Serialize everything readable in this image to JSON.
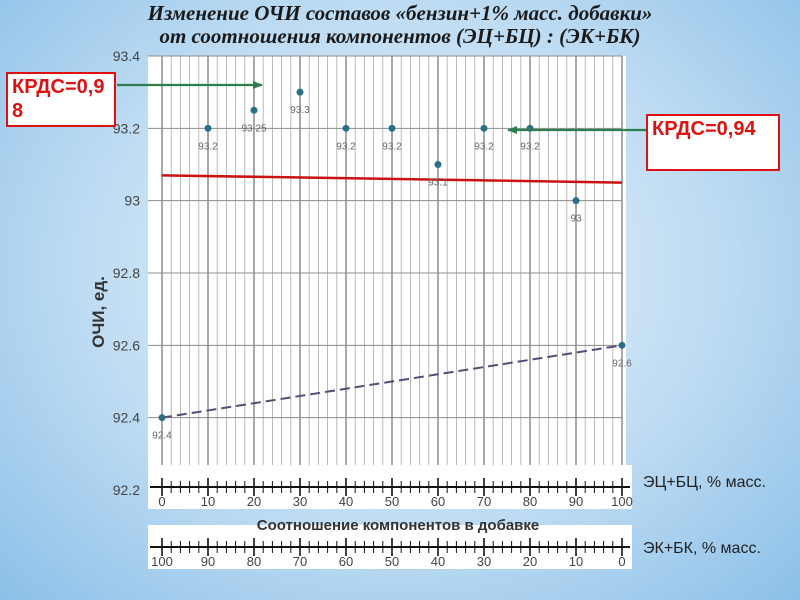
{
  "title_line1": "Изменение ОЧИ составов «бензин+1% масс. добавки»",
  "title_line2": "от соотношения компонентов (ЭЦ+БЦ) : (ЭК+БК)",
  "annotations": {
    "left": "КРДС=0,98",
    "right": "КРДС=0,94"
  },
  "axis_captions": {
    "top_scale": "ЭЦ+БЦ, % масс.",
    "bottom_scale": "ЭК+БК, % масс."
  },
  "colors": {
    "points": "#2a6f87",
    "trend_solid": "#cc1111",
    "trend_dashed": "#5a4a78",
    "arrow": "#2e7d4f",
    "annotation": "#dd1111"
  },
  "chart_data": {
    "type": "scatter",
    "title": "Изменение ОЧИ составов «бензин+1% масс. добавки» от соотношения компонентов (ЭЦ+БЦ) : (ЭК+БК)",
    "xlabel": "Соотношение компонентов в добавке",
    "ylabel": "ОЧИ, ед.",
    "xlim": [
      0,
      100
    ],
    "ylim": [
      92.2,
      93.4
    ],
    "yticks": [
      "92.2",
      "92.4",
      "92.6",
      "92.8",
      "93",
      "93.2",
      "93.4"
    ],
    "xticks": [
      "0",
      "10",
      "20",
      "30",
      "40",
      "50",
      "60",
      "70",
      "80",
      "90",
      "100"
    ],
    "xticks_reverse": [
      "100",
      "90",
      "80",
      "70",
      "60",
      "50",
      "40",
      "30",
      "20",
      "10",
      "0"
    ],
    "grid": true,
    "series": [
      {
        "name": "ЭЦ+БЦ",
        "points": [
          {
            "x": 10,
            "y": 93.2,
            "label": "93.2"
          },
          {
            "x": 20,
            "y": 93.25,
            "label": "93.25"
          },
          {
            "x": 30,
            "y": 93.3,
            "label": "93.3"
          },
          {
            "x": 40,
            "y": 93.2,
            "label": "93.2"
          },
          {
            "x": 50,
            "y": 93.2,
            "label": "93.2"
          },
          {
            "x": 60,
            "y": 93.1,
            "label": "93.1"
          },
          {
            "x": 70,
            "y": 93.2,
            "label": "93.2"
          },
          {
            "x": 80,
            "y": 93.2,
            "label": "93.2"
          },
          {
            "x": 90,
            "y": 93.0,
            "label": "93"
          }
        ],
        "trend": {
          "x": [
            0,
            100
          ],
          "y": [
            93.07,
            93.05
          ],
          "style": "solid"
        }
      },
      {
        "name": "ЭК+БК",
        "points": [
          {
            "x": 0,
            "y": 92.4,
            "label": "92.4"
          },
          {
            "x": 100,
            "y": 92.6,
            "label": "92.6"
          }
        ],
        "trend": {
          "x": [
            0,
            100
          ],
          "y": [
            92.4,
            92.6
          ],
          "style": "dashed"
        }
      }
    ]
  }
}
